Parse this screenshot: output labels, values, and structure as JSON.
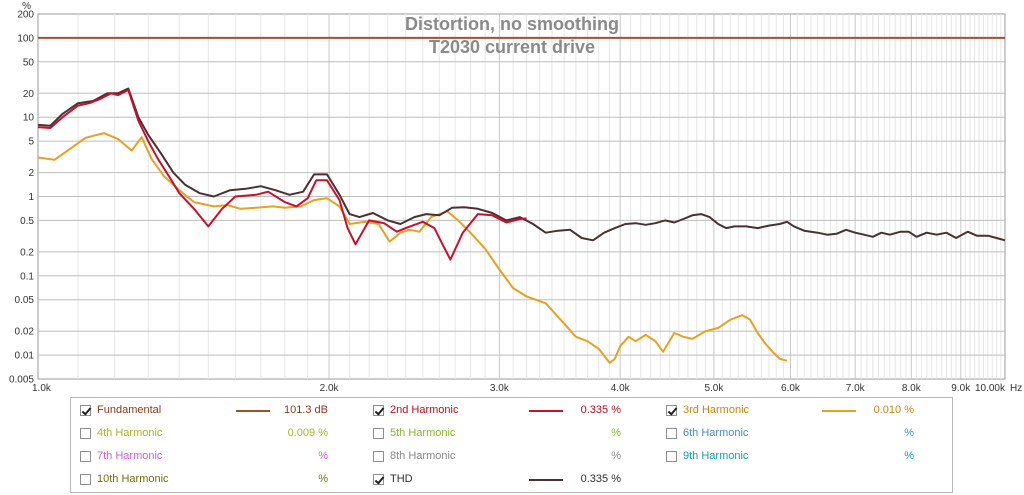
{
  "chart_data": {
    "type": "line",
    "title": "Distortion, no smoothing",
    "subtitle": "T2030 current drive",
    "xlabel": "",
    "x_unit": "Hz",
    "ylabel": "%",
    "xscale": "log",
    "yscale": "log",
    "xlim": [
      1000,
      10000
    ],
    "ylim": [
      0.005,
      200
    ],
    "grid": true,
    "x_ticks": [
      {
        "v": 1000,
        "label": "1.0k"
      },
      {
        "v": 2000,
        "label": "2.0k"
      },
      {
        "v": 3000,
        "label": "3.0k"
      },
      {
        "v": 4000,
        "label": "4.0k"
      },
      {
        "v": 5000,
        "label": "5.0k"
      },
      {
        "v": 6000,
        "label": "6.0k"
      },
      {
        "v": 7000,
        "label": "7.0k"
      },
      {
        "v": 8000,
        "label": "8.0k"
      },
      {
        "v": 9000,
        "label": "9.0k"
      },
      {
        "v": 10000,
        "label": "10.00k"
      }
    ],
    "y_ticks": [
      {
        "v": 200,
        "label": "200"
      },
      {
        "v": 100,
        "label": "100"
      },
      {
        "v": 50,
        "label": "50"
      },
      {
        "v": 20,
        "label": "20"
      },
      {
        "v": 10,
        "label": "10"
      },
      {
        "v": 5,
        "label": "5"
      },
      {
        "v": 2,
        "label": "2"
      },
      {
        "v": 1,
        "label": "1"
      },
      {
        "v": 0.5,
        "label": "0.5"
      },
      {
        "v": 0.2,
        "label": "0.2"
      },
      {
        "v": 0.1,
        "label": "0.1"
      },
      {
        "v": 0.05,
        "label": "0.05"
      },
      {
        "v": 0.02,
        "label": "0.02"
      },
      {
        "v": 0.01,
        "label": "0.01"
      },
      {
        "v": 0.005,
        "label": "0.005"
      }
    ],
    "series": [
      {
        "name": "Fundamental",
        "color": "#a0522d",
        "points": [
          [
            1000,
            100
          ],
          [
            10000,
            100
          ]
        ]
      },
      {
        "name": "2nd Harmonic",
        "color": "#c8102e",
        "points": [
          [
            1000,
            7.5
          ],
          [
            1030,
            7.3
          ],
          [
            1060,
            10
          ],
          [
            1100,
            14
          ],
          [
            1130,
            15
          ],
          [
            1160,
            17
          ],
          [
            1190,
            20
          ],
          [
            1210,
            19
          ],
          [
            1240,
            22
          ],
          [
            1270,
            9
          ],
          [
            1300,
            5
          ],
          [
            1330,
            3
          ],
          [
            1370,
            1.7
          ],
          [
            1400,
            1.1
          ],
          [
            1450,
            0.7
          ],
          [
            1500,
            0.42
          ],
          [
            1550,
            0.7
          ],
          [
            1600,
            1
          ],
          [
            1680,
            1.05
          ],
          [
            1730,
            1.15
          ],
          [
            1800,
            0.85
          ],
          [
            1850,
            0.75
          ],
          [
            1900,
            0.95
          ],
          [
            1940,
            1.6
          ],
          [
            1990,
            1.6
          ],
          [
            2050,
            0.9
          ],
          [
            2090,
            0.4
          ],
          [
            2130,
            0.25
          ],
          [
            2200,
            0.5
          ],
          [
            2280,
            0.46
          ],
          [
            2350,
            0.36
          ],
          [
            2400,
            0.4
          ],
          [
            2500,
            0.48
          ],
          [
            2570,
            0.4
          ],
          [
            2620,
            0.25
          ],
          [
            2670,
            0.16
          ],
          [
            2750,
            0.35
          ],
          [
            2850,
            0.6
          ],
          [
            2950,
            0.58
          ],
          [
            3050,
            0.47
          ],
          [
            3150,
            0.52
          ],
          [
            3200,
            0.53
          ]
        ]
      },
      {
        "name": "3rd Harmonic",
        "color": "#e8a020",
        "points": [
          [
            1000,
            3.1
          ],
          [
            1040,
            2.9
          ],
          [
            1080,
            4
          ],
          [
            1120,
            5.5
          ],
          [
            1170,
            6.3
          ],
          [
            1210,
            5.3
          ],
          [
            1250,
            3.8
          ],
          [
            1280,
            5.6
          ],
          [
            1310,
            3
          ],
          [
            1350,
            1.8
          ],
          [
            1400,
            1.2
          ],
          [
            1450,
            0.85
          ],
          [
            1520,
            0.75
          ],
          [
            1570,
            0.78
          ],
          [
            1620,
            0.7
          ],
          [
            1680,
            0.72
          ],
          [
            1750,
            0.75
          ],
          [
            1800,
            0.72
          ],
          [
            1870,
            0.75
          ],
          [
            1930,
            0.9
          ],
          [
            1990,
            0.95
          ],
          [
            2050,
            0.75
          ],
          [
            2100,
            0.45
          ],
          [
            2180,
            0.48
          ],
          [
            2250,
            0.45
          ],
          [
            2310,
            0.27
          ],
          [
            2370,
            0.35
          ],
          [
            2420,
            0.38
          ],
          [
            2480,
            0.36
          ],
          [
            2550,
            0.55
          ],
          [
            2650,
            0.65
          ],
          [
            2720,
            0.5
          ],
          [
            2800,
            0.35
          ],
          [
            2900,
            0.22
          ],
          [
            3000,
            0.12
          ],
          [
            3100,
            0.07
          ],
          [
            3200,
            0.055
          ],
          [
            3350,
            0.045
          ],
          [
            3500,
            0.025
          ],
          [
            3600,
            0.017
          ],
          [
            3700,
            0.015
          ],
          [
            3800,
            0.012
          ],
          [
            3900,
            0.008
          ],
          [
            3950,
            0.009
          ],
          [
            4000,
            0.013
          ],
          [
            4080,
            0.017
          ],
          [
            4150,
            0.015
          ],
          [
            4250,
            0.018
          ],
          [
            4350,
            0.015
          ],
          [
            4430,
            0.011
          ],
          [
            4550,
            0.019
          ],
          [
            4650,
            0.017
          ],
          [
            4750,
            0.016
          ],
          [
            4900,
            0.02
          ],
          [
            5050,
            0.022
          ],
          [
            5200,
            0.028
          ],
          [
            5350,
            0.032
          ],
          [
            5450,
            0.028
          ],
          [
            5550,
            0.019
          ],
          [
            5650,
            0.014
          ],
          [
            5750,
            0.011
          ],
          [
            5850,
            0.009
          ],
          [
            5950,
            0.0085
          ]
        ]
      },
      {
        "name": "THD",
        "color": "#4a3030",
        "points": [
          [
            1000,
            8
          ],
          [
            1030,
            7.8
          ],
          [
            1060,
            11
          ],
          [
            1100,
            15
          ],
          [
            1140,
            16
          ],
          [
            1180,
            20
          ],
          [
            1210,
            20
          ],
          [
            1240,
            23
          ],
          [
            1270,
            10
          ],
          [
            1300,
            6
          ],
          [
            1340,
            3.5
          ],
          [
            1380,
            2
          ],
          [
            1420,
            1.4
          ],
          [
            1470,
            1.1
          ],
          [
            1520,
            1
          ],
          [
            1580,
            1.2
          ],
          [
            1640,
            1.25
          ],
          [
            1700,
            1.35
          ],
          [
            1760,
            1.2
          ],
          [
            1820,
            1.05
          ],
          [
            1880,
            1.15
          ],
          [
            1930,
            1.9
          ],
          [
            1990,
            1.9
          ],
          [
            2050,
            1.05
          ],
          [
            2100,
            0.6
          ],
          [
            2150,
            0.55
          ],
          [
            2220,
            0.62
          ],
          [
            2300,
            0.5
          ],
          [
            2370,
            0.45
          ],
          [
            2450,
            0.55
          ],
          [
            2520,
            0.6
          ],
          [
            2600,
            0.58
          ],
          [
            2680,
            0.72
          ],
          [
            2760,
            0.73
          ],
          [
            2850,
            0.7
          ],
          [
            2950,
            0.62
          ],
          [
            3050,
            0.5
          ],
          [
            3150,
            0.55
          ],
          [
            3250,
            0.45
          ],
          [
            3350,
            0.35
          ],
          [
            3450,
            0.37
          ],
          [
            3550,
            0.38
          ],
          [
            3650,
            0.3
          ],
          [
            3750,
            0.28
          ],
          [
            3850,
            0.35
          ],
          [
            3950,
            0.4
          ],
          [
            4050,
            0.45
          ],
          [
            4150,
            0.46
          ],
          [
            4250,
            0.44
          ],
          [
            4350,
            0.46
          ],
          [
            4450,
            0.5
          ],
          [
            4550,
            0.47
          ],
          [
            4650,
            0.52
          ],
          [
            4750,
            0.58
          ],
          [
            4850,
            0.6
          ],
          [
            4950,
            0.55
          ],
          [
            5050,
            0.45
          ],
          [
            5150,
            0.4
          ],
          [
            5250,
            0.42
          ],
          [
            5400,
            0.42
          ],
          [
            5550,
            0.4
          ],
          [
            5700,
            0.43
          ],
          [
            5850,
            0.45
          ],
          [
            5950,
            0.48
          ],
          [
            6050,
            0.42
          ],
          [
            6200,
            0.37
          ],
          [
            6400,
            0.35
          ],
          [
            6550,
            0.33
          ],
          [
            6700,
            0.34
          ],
          [
            6850,
            0.38
          ],
          [
            7000,
            0.35
          ],
          [
            7150,
            0.33
          ],
          [
            7300,
            0.31
          ],
          [
            7450,
            0.35
          ],
          [
            7600,
            0.33
          ],
          [
            7800,
            0.36
          ],
          [
            7950,
            0.36
          ],
          [
            8100,
            0.31
          ],
          [
            8300,
            0.35
          ],
          [
            8500,
            0.33
          ],
          [
            8700,
            0.35
          ],
          [
            8900,
            0.3
          ],
          [
            9150,
            0.36
          ],
          [
            9350,
            0.32
          ],
          [
            9600,
            0.32
          ],
          [
            9800,
            0.3
          ],
          [
            10000,
            0.28
          ]
        ]
      }
    ]
  },
  "legend": {
    "fundamental": {
      "name": "Fundamental",
      "value": "101.3 dB",
      "checked": true,
      "color": "#a0522d",
      "text_color": "#8b3a1a"
    },
    "h2": {
      "name": "2nd Harmonic",
      "value": "0.335 %",
      "checked": true,
      "color": "#c8102e",
      "text_color": "#b0101e"
    },
    "h3": {
      "name": "3rd Harmonic",
      "value": "0.010 %",
      "checked": true,
      "color": "#e8a020",
      "text_color": "#c8860a"
    },
    "h4": {
      "name": "4th Harmonic",
      "value": "0.009 %",
      "checked": false,
      "text_color": "#a8b820"
    },
    "h5": {
      "name": "5th Harmonic",
      "value": "%",
      "checked": false,
      "text_color": "#88b830"
    },
    "h6": {
      "name": "6th Harmonic",
      "value": "%",
      "checked": false,
      "text_color": "#4a8ac8"
    },
    "h7": {
      "name": "7th Harmonic",
      "value": "%",
      "checked": false,
      "text_color": "#d060d0"
    },
    "h8": {
      "name": "8th Harmonic",
      "value": "%",
      "checked": false,
      "text_color": "#888888"
    },
    "h9": {
      "name": "9th Harmonic",
      "value": "%",
      "checked": false,
      "text_color": "#10a0a8"
    },
    "h10": {
      "name": "10th Harmonic",
      "value": "%",
      "checked": false,
      "text_color": "#707010"
    },
    "thd": {
      "name": "THD",
      "value": "0.335 %",
      "checked": true,
      "color": "#4a3030",
      "text_color": "#303030"
    }
  }
}
